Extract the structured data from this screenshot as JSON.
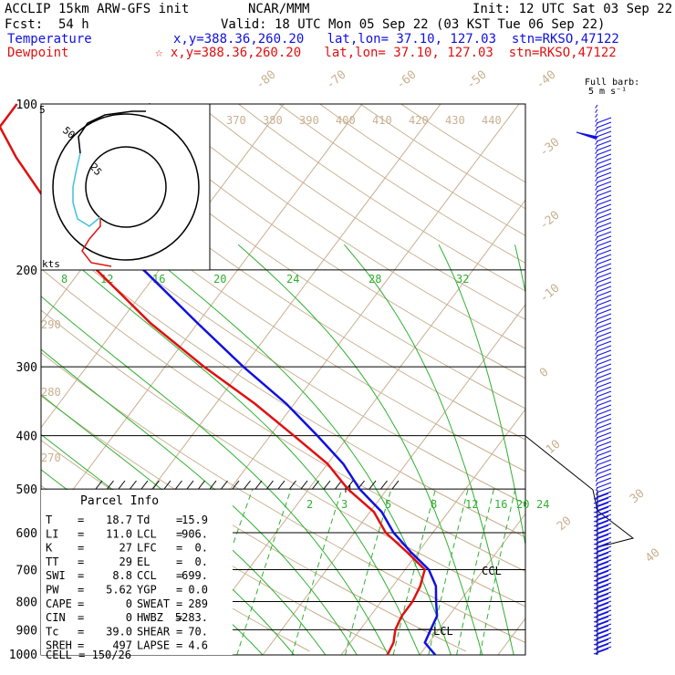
{
  "header": {
    "model": "ACCLIP 15km ARW-GFS init",
    "org": "NCAR/MMM",
    "init": "Init: 12 UTC Sat 03 Sep 22",
    "fcst_label": "Fcst:",
    "fcst_value": "54 h",
    "valid": "Valid: 18 UTC Mon 05 Sep 22 (03 KST Tue 06 Sep 22)",
    "temp_label": "Temperature",
    "temp_info": "x,y=388.36,260.20   lat,lon= 37.10, 127.03  stn=RKSO,47122",
    "dew_label": "Dewpoint",
    "dew_info": "☆ x,y=388.36,260.20   lat,lon= 37.10, 127.03  stn=RKSO,47122",
    "barb_label_1": "Full barb:",
    "barb_label_2": "5 m s⁻¹"
  },
  "colors": {
    "temperature": "#1010e0",
    "dewpoint": "#e01010",
    "isotherm": "#c8b090",
    "adiabat": "#30b030",
    "hodo_lower": "#e01010",
    "hodo_mid": "#40c0e0"
  },
  "chart_data": {
    "type": "skew-t",
    "pressure_labels": [
      "100",
      "200",
      "300",
      "400",
      "500",
      "600",
      "700",
      "800",
      "900",
      "1000"
    ],
    "isotherm_labels": [
      "-80",
      "-70",
      "-60",
      "-50",
      "-40",
      "-30",
      "-20",
      "-10",
      "0",
      "10",
      "20",
      "30",
      "40"
    ],
    "theta_labels_top": [
      "370",
      "380",
      "390",
      "400",
      "410",
      "420",
      "430",
      "440"
    ],
    "theta_labels_left": [
      "290",
      "280",
      "270"
    ],
    "thetae_labels": [
      "8",
      "12",
      "16",
      "20",
      "24",
      "28",
      "32"
    ],
    "mixing_ratio_labels": [
      "2",
      "3",
      "5",
      "8",
      "12",
      "16",
      "20",
      "24"
    ],
    "temperature_profile": [
      {
        "p": 1000,
        "t": 22.0
      },
      {
        "p": 950,
        "t": 19.5
      },
      {
        "p": 900,
        "t": 19.0
      },
      {
        "p": 850,
        "t": 18.5
      },
      {
        "p": 800,
        "t": 17.0
      },
      {
        "p": 750,
        "t": 15.5
      },
      {
        "p": 700,
        "t": 13.0
      },
      {
        "p": 650,
        "t": 9.0
      },
      {
        "p": 600,
        "t": 5.0
      },
      {
        "p": 550,
        "t": 1.5
      },
      {
        "p": 500,
        "t": -3.5
      },
      {
        "p": 450,
        "t": -8.0
      },
      {
        "p": 400,
        "t": -14.0
      },
      {
        "p": 350,
        "t": -21.0
      },
      {
        "p": 300,
        "t": -30.0
      },
      {
        "p": 250,
        "t": -40.0
      },
      {
        "p": 200,
        "t": -52.0
      },
      {
        "p": 175,
        "t": -59.0
      },
      {
        "p": 150,
        "t": -66.0
      },
      {
        "p": 125,
        "t": -73.0
      },
      {
        "p": 115,
        "t": -72.0
      },
      {
        "p": 100,
        "t": -67.0
      }
    ],
    "dewpoint_profile": [
      {
        "p": 1000,
        "t": 15.9
      },
      {
        "p": 950,
        "t": 15.5
      },
      {
        "p": 900,
        "t": 14.5
      },
      {
        "p": 850,
        "t": 14.0
      },
      {
        "p": 800,
        "t": 14.0
      },
      {
        "p": 750,
        "t": 13.5
      },
      {
        "p": 700,
        "t": 12.5
      },
      {
        "p": 650,
        "t": 8.5
      },
      {
        "p": 600,
        "t": 4.0
      },
      {
        "p": 550,
        "t": 0.5
      },
      {
        "p": 500,
        "t": -5.0
      },
      {
        "p": 450,
        "t": -10.0
      },
      {
        "p": 400,
        "t": -17.0
      },
      {
        "p": 350,
        "t": -25.0
      },
      {
        "p": 300,
        "t": -35.0
      },
      {
        "p": 250,
        "t": -46.0
      },
      {
        "p": 200,
        "t": -58.0
      },
      {
        "p": 150,
        "t": -71.0
      },
      {
        "p": 125,
        "t": -79.0
      },
      {
        "p": 110,
        "t": -84.0
      },
      {
        "p": 100,
        "t": -84.0
      }
    ],
    "annotations": {
      "ccl": "CCL",
      "lcl": "LCL",
      "el_marker": "M",
      "hodo_units": "kts",
      "hodo_rings": [
        "5",
        "25",
        "50"
      ]
    }
  },
  "parcel": {
    "title": "Parcel Info",
    "rows": [
      {
        "a": "T",
        "av": "18.7",
        "b": "Td",
        "bv": "15.9"
      },
      {
        "a": "LI",
        "av": "11.0",
        "b": "LCL",
        "bv": "906."
      },
      {
        "a": "K",
        "av": "27",
        "b": "LFC",
        "bv": "0."
      },
      {
        "a": "TT",
        "av": "29",
        "b": "EL",
        "bv": "0."
      },
      {
        "a": "SWI",
        "av": "8.8",
        "b": "CCL",
        "bv": "699."
      },
      {
        "a": "PW",
        "av": "5.62",
        "b": "YGP",
        "bv": "0.0"
      },
      {
        "a": "CAPE",
        "av": "0",
        "b": "SWEAT",
        "bv": "289"
      },
      {
        "a": "CIN",
        "av": "0",
        "b": "HWBZ",
        "bv": "5283."
      },
      {
        "a": "Tc",
        "av": "39.0",
        "b": "SHEAR",
        "bv": "70."
      },
      {
        "a": "SREH",
        "av": "497",
        "b": "LAPSE",
        "bv": "4.6"
      }
    ],
    "cell": "CELL = 150/26"
  }
}
